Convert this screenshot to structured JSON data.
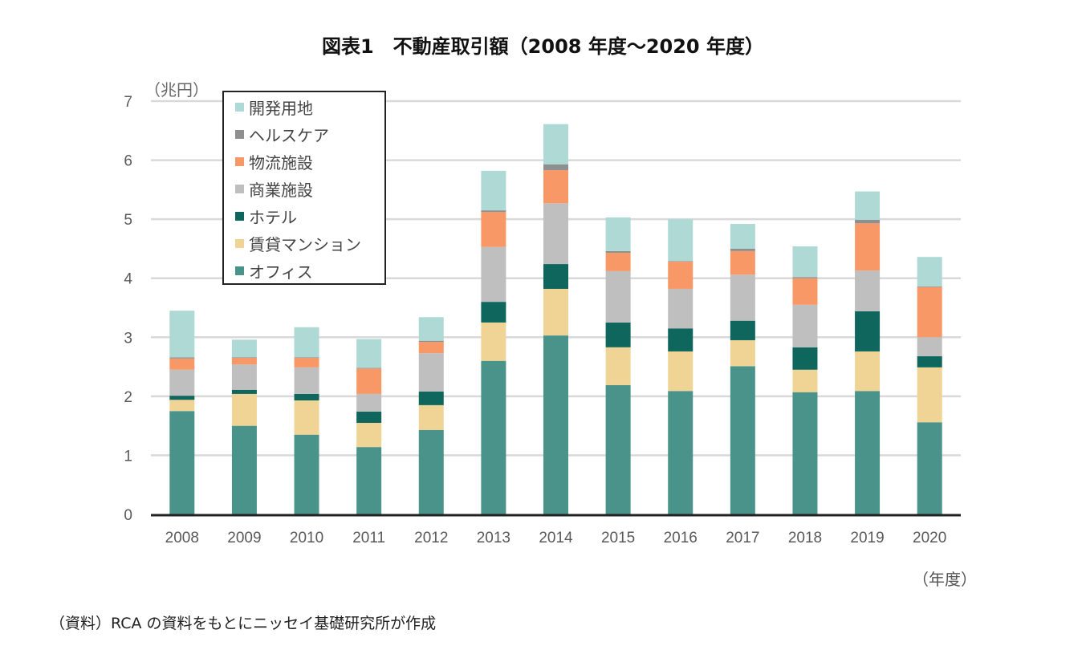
{
  "chart_data": {
    "type": "bar",
    "stacked": true,
    "title": "図表1　不動産取引額（2008 年度～2020 年度）",
    "ylabel": "（兆円）",
    "xlabel": "（年度）",
    "ylim": [
      0,
      7
    ],
    "yticks": [
      "0",
      "1",
      "2",
      "3",
      "4",
      "5",
      "6",
      "7"
    ],
    "grid": true,
    "legend_position": "top-left",
    "categories": [
      "2008",
      "2009",
      "2010",
      "2011",
      "2012",
      "2013",
      "2014",
      "2015",
      "2016",
      "2017",
      "2018",
      "2019",
      "2020"
    ],
    "series": [
      {
        "name": "オフィス",
        "color": "#4a938a",
        "values": [
          1.75,
          1.5,
          1.35,
          1.14,
          1.43,
          2.6,
          3.03,
          2.19,
          2.09,
          2.51,
          2.07,
          2.09,
          1.56
        ]
      },
      {
        "name": "賃貸マンション",
        "color": "#f0d496",
        "values": [
          0.19,
          0.54,
          0.58,
          0.41,
          0.42,
          0.65,
          0.79,
          0.64,
          0.67,
          0.44,
          0.38,
          0.67,
          0.93
        ]
      },
      {
        "name": "ホテル",
        "color": "#0e665c",
        "values": [
          0.07,
          0.07,
          0.11,
          0.19,
          0.23,
          0.35,
          0.42,
          0.42,
          0.39,
          0.33,
          0.38,
          0.68,
          0.19
        ]
      },
      {
        "name": "商業施設",
        "color": "#bfbfbf",
        "values": [
          0.44,
          0.43,
          0.45,
          0.3,
          0.65,
          0.93,
          1.03,
          0.87,
          0.67,
          0.78,
          0.72,
          0.69,
          0.32
        ]
      },
      {
        "name": "物流施設",
        "color": "#f79866",
        "values": [
          0.19,
          0.11,
          0.16,
          0.43,
          0.19,
          0.59,
          0.56,
          0.31,
          0.46,
          0.4,
          0.45,
          0.8,
          0.85
        ]
      },
      {
        "name": "ヘルスケア",
        "color": "#8f8f8f",
        "values": [
          0.02,
          0.01,
          0.01,
          0.01,
          0.02,
          0.03,
          0.1,
          0.03,
          0.01,
          0.04,
          0.02,
          0.06,
          0.01
        ]
      },
      {
        "name": "開発用地",
        "color": "#afd9d5",
        "values": [
          0.79,
          0.3,
          0.51,
          0.49,
          0.4,
          0.67,
          0.68,
          0.57,
          0.71,
          0.42,
          0.52,
          0.48,
          0.5
        ]
      }
    ]
  },
  "source": "（資料）RCA の資料をもとにニッセイ基礎研究所が作成"
}
